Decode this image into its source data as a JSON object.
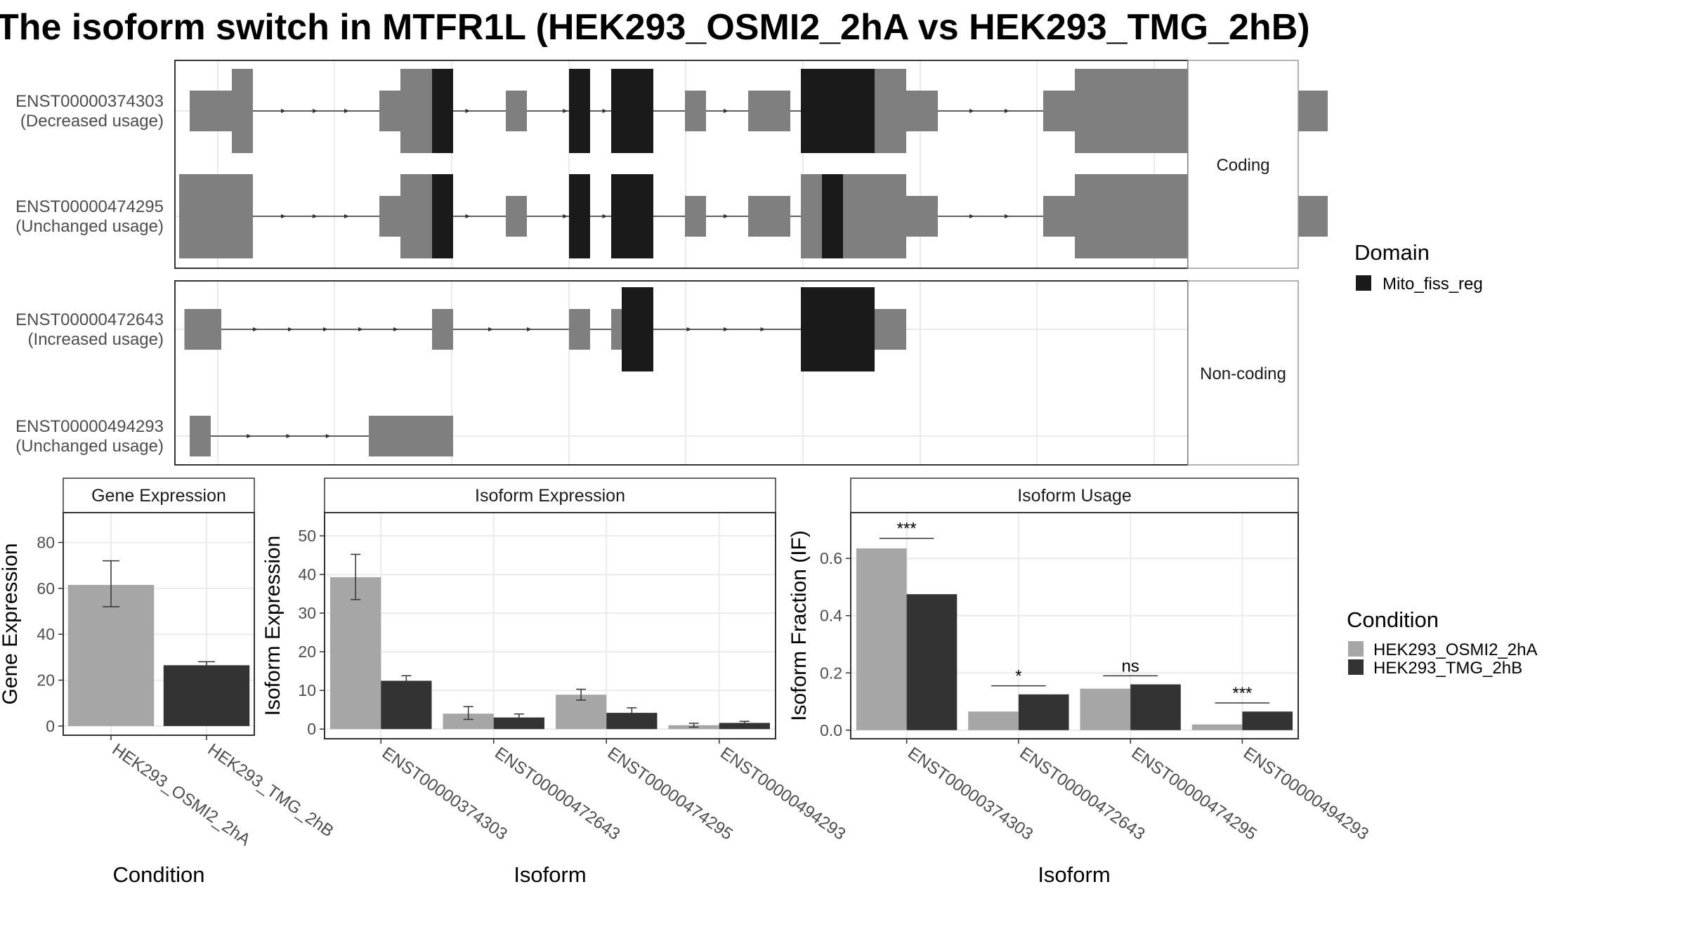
{
  "title": "The isoform switch in MTFR1L (HEK293_OSMI2_2hA vs HEK293_TMG_2hB)",
  "colors": {
    "domain": "#1a1a1a",
    "utr": "#7f7f7f",
    "cond1": "#a6a6a6",
    "cond2": "#333333",
    "panel_border": "#333333",
    "strip_border": "#999999",
    "grid": "#ebebeb"
  },
  "structure": {
    "groups": [
      {
        "label": "Coding",
        "transcripts": [
          {
            "id": "ENST00000374303",
            "usage": "(Decreased usage)",
            "thin": [
              [
                2,
                8
              ],
              [
                20,
                25
              ],
              [
                32,
                34
              ],
              [
                49,
                51
              ],
              [
                55,
                59
              ],
              [
                69,
                73
              ],
              [
                83,
                86
              ],
              [
                95,
                110
              ]
            ],
            "wide": [
              [
                6,
                8
              ],
              [
                22,
                25
              ],
              [
                60,
                70
              ],
              [
                86,
                101
              ]
            ],
            "domain": [
              [
                25,
                27
              ],
              [
                38,
                40
              ],
              [
                42,
                46
              ],
              [
                60,
                67
              ]
            ]
          },
          {
            "id": "ENST00000474295",
            "usage": "(Unchanged usage)",
            "thin": [
              [
                1,
                8
              ],
              [
                20,
                25
              ],
              [
                32,
                34
              ],
              [
                49,
                51
              ],
              [
                55,
                59
              ],
              [
                69,
                73
              ],
              [
                83,
                86
              ],
              [
                95,
                110
              ]
            ],
            "wide": [
              [
                1,
                8
              ],
              [
                22,
                25
              ],
              [
                60,
                70
              ],
              [
                86,
                101
              ]
            ],
            "domain": [
              [
                25,
                27
              ],
              [
                38,
                40
              ],
              [
                42,
                46
              ],
              [
                62,
                64
              ]
            ]
          }
        ]
      },
      {
        "label": "Non-coding",
        "transcripts": [
          {
            "id": "ENST00000472643",
            "usage": "(Increased usage)",
            "thin": [
              [
                1.5,
                5
              ],
              [
                25,
                27
              ],
              [
                38,
                40
              ],
              [
                42,
                46
              ],
              [
                60,
                70
              ]
            ],
            "domain": [
              [
                43,
                46
              ],
              [
                60,
                67
              ]
            ]
          },
          {
            "id": "ENST00000494293",
            "usage": "(Unchanged usage)",
            "thin": [
              [
                2,
                4
              ],
              [
                19,
                27
              ]
            ],
            "domain": []
          }
        ]
      }
    ],
    "domain_legend": {
      "title": "Domain",
      "items": [
        "Mito_fiss_reg"
      ]
    }
  },
  "chart_data": [
    {
      "type": "bar",
      "title": "Gene Expression",
      "xlabel": "Condition",
      "ylabel": "Gene Expression",
      "ylim": [
        -4,
        93
      ],
      "yticks": [
        0,
        20,
        40,
        60,
        80
      ],
      "categories": [
        "HEK293_OSMI2_2hA",
        "HEK293_TMG_2hB"
      ],
      "values": [
        61.5,
        26.5
      ],
      "error": [
        [
          52,
          72
        ],
        [
          25.5,
          28
        ]
      ]
    },
    {
      "type": "bar",
      "title": "Isoform Expression",
      "xlabel": "Isoform",
      "ylabel": "Isoform Expression",
      "ylim": [
        -2.5,
        56
      ],
      "yticks": [
        0,
        10,
        20,
        30,
        40,
        50
      ],
      "categories": [
        "ENST00000374303",
        "ENST00000472643",
        "ENST00000474295",
        "ENST00000494293"
      ],
      "series": [
        {
          "name": "HEK293_OSMI2_2hA",
          "values": [
            39.3,
            4.0,
            8.9,
            1.0
          ],
          "error": [
            [
              33.5,
              45.2
            ],
            [
              2.5,
              5.8
            ],
            [
              7.5,
              10.3
            ],
            [
              0.5,
              1.5
            ]
          ]
        },
        {
          "name": "HEK293_TMG_2hB",
          "values": [
            12.5,
            3.0,
            4.2,
            1.6
          ],
          "error": [
            [
              11.0,
              13.8
            ],
            [
              2.2,
              3.9
            ],
            [
              2.9,
              5.5
            ],
            [
              1.2,
              2.0
            ]
          ]
        }
      ]
    },
    {
      "type": "bar",
      "title": "Isoform Usage",
      "xlabel": "Isoform",
      "ylabel": "Isoform Fraction (IF)",
      "ylim": [
        -0.03,
        0.76
      ],
      "yticks": [
        0.0,
        0.2,
        0.4,
        0.6
      ],
      "ytick_labels": [
        "0.0",
        "0.2",
        "0.4",
        "0.6"
      ],
      "categories": [
        "ENST00000374303",
        "ENST00000472643",
        "ENST00000474295",
        "ENST00000494293"
      ],
      "series": [
        {
          "name": "HEK293_OSMI2_2hA",
          "values": [
            0.635,
            0.065,
            0.145,
            0.02
          ]
        },
        {
          "name": "HEK293_TMG_2hB",
          "values": [
            0.475,
            0.125,
            0.16,
            0.065
          ]
        }
      ],
      "significance": [
        {
          "label": "***",
          "y": 0.67
        },
        {
          "label": "*",
          "y": 0.155
        },
        {
          "label": "ns",
          "y": 0.19
        },
        {
          "label": "***",
          "y": 0.095
        }
      ]
    }
  ],
  "condition_legend": {
    "title": "Condition",
    "items": [
      "HEK293_OSMI2_2hA",
      "HEK293_TMG_2hB"
    ]
  }
}
